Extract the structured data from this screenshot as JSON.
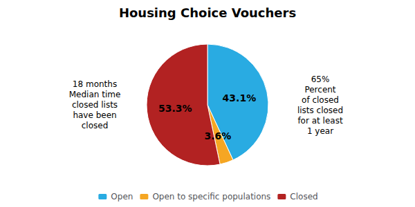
{
  "chart_data": {
    "type": "pie",
    "title": "Housing Choice Vouchers",
    "categories": [
      "Open",
      "Open to specific populations",
      "Closed"
    ],
    "values": [
      43.1,
      3.6,
      53.3
    ],
    "value_labels": [
      "43.1%",
      "3.6%",
      "53.3%"
    ],
    "colors": [
      "#29ABE2",
      "#F5A623",
      "#B22222"
    ],
    "data_labels": true,
    "legend": "bottom",
    "annotations": [
      "18 months\nMedian time\nclosed lists\nhave been\nclosed",
      "65%\nPercent\nof closed\nlists closed\nfor at least\n1 year"
    ]
  }
}
